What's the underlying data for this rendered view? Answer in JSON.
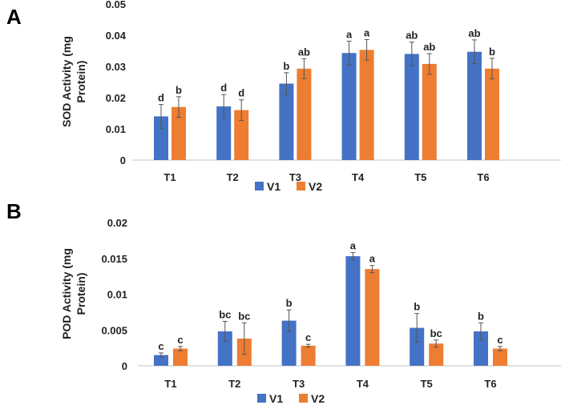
{
  "colors": {
    "V1": "#4472C4",
    "V2": "#ED7D31",
    "error": "#555555",
    "axis": "#D9D9D9"
  },
  "chart_data": [
    {
      "type": "bar",
      "panel": "A",
      "ylabel_lines": [
        "SOD Activity (mg",
        "Protein)"
      ],
      "xlabel": "",
      "categories": [
        "T1",
        "T2",
        "T3",
        "T4",
        "T5",
        "T6"
      ],
      "ylim": [
        0,
        0.05
      ],
      "yticks": [
        "0",
        "0.01",
        "0.02",
        "0.03",
        "0.04",
        "0.05"
      ],
      "ytick_values": [
        0,
        0.01,
        0.02,
        0.03,
        0.04,
        0.05
      ],
      "legend": "bottom",
      "grid": false,
      "series": [
        {
          "name": "V1",
          "values": [
            0.014,
            0.0172,
            0.0245,
            0.0343,
            0.034,
            0.0347
          ],
          "errors": [
            0.0038,
            0.0038,
            0.0035,
            0.0038,
            0.0038,
            0.0038
          ],
          "letters": [
            "d",
            "d",
            "b",
            "a",
            "ab",
            "ab"
          ]
        },
        {
          "name": "V2",
          "values": [
            0.017,
            0.016,
            0.0293,
            0.0353,
            0.0308,
            0.0293
          ],
          "errors": [
            0.0033,
            0.0033,
            0.0032,
            0.0033,
            0.0033,
            0.0033
          ],
          "letters": [
            "b",
            "d",
            "ab",
            "a",
            "ab",
            "b"
          ]
        }
      ]
    },
    {
      "type": "bar",
      "panel": "B",
      "ylabel_lines": [
        "POD Activity (mg",
        "Protein)"
      ],
      "xlabel": "",
      "categories": [
        "T1",
        "T2",
        "T3",
        "T4",
        "T5",
        "T6"
      ],
      "ylim": [
        0,
        0.02
      ],
      "yticks": [
        "0",
        "0.005",
        "0.01",
        "0.015",
        "0.02"
      ],
      "ytick_values": [
        0,
        0.005,
        0.01,
        0.015,
        0.02
      ],
      "legend": "bottom",
      "grid": false,
      "series": [
        {
          "name": "V1",
          "values": [
            0.0015,
            0.0048,
            0.0063,
            0.0153,
            0.0053,
            0.0048
          ],
          "errors": [
            0.0003,
            0.0014,
            0.0015,
            0.0005,
            0.002,
            0.0012
          ],
          "letters": [
            "c",
            "bc",
            "b",
            "a",
            "b",
            "b"
          ]
        },
        {
          "name": "V2",
          "values": [
            0.0024,
            0.0038,
            0.0028,
            0.0135,
            0.0031,
            0.0024
          ],
          "errors": [
            0.0003,
            0.0022,
            0.0002,
            0.0005,
            0.0005,
            0.0003
          ],
          "letters": [
            "c",
            "bc",
            "c",
            "a",
            "bc",
            "c"
          ]
        }
      ]
    }
  ]
}
